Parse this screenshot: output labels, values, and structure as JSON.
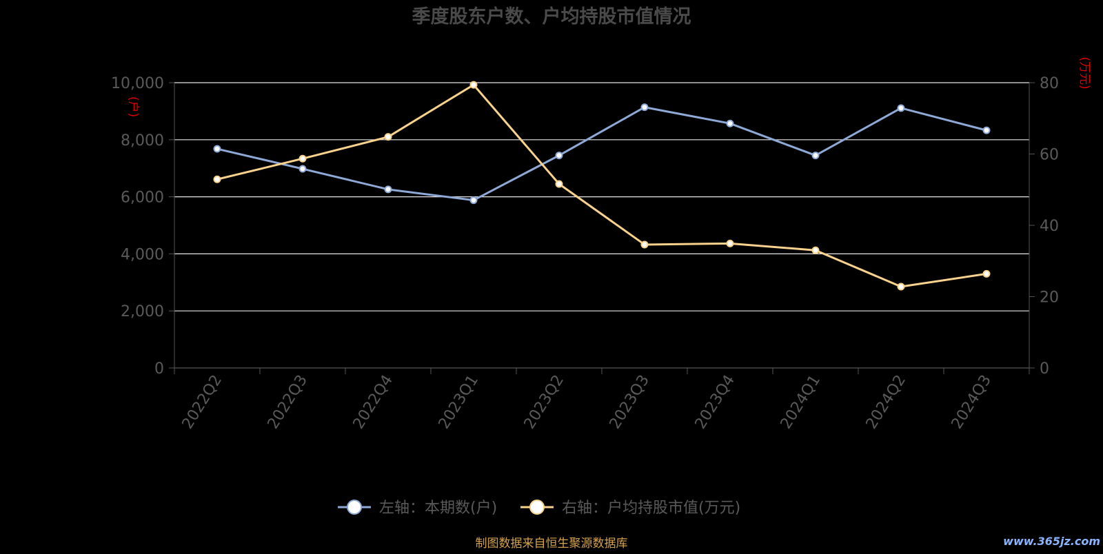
{
  "chart_data": {
    "type": "line",
    "title": "季度股东户数、户均持股市值情况",
    "categories": [
      "2022Q2",
      "2022Q3",
      "2022Q4",
      "2023Q1",
      "2023Q2",
      "2023Q3",
      "2023Q4",
      "2024Q1",
      "2024Q2",
      "2024Q3"
    ],
    "y_left": {
      "unit": "(户)",
      "min": 0,
      "max": 10000,
      "ticks": [
        0,
        2000,
        4000,
        6000,
        8000,
        10000
      ],
      "tick_labels": [
        "0",
        "2,000",
        "4,000",
        "6,000",
        "8,000",
        "10,000"
      ]
    },
    "y_right": {
      "unit": "(万元)",
      "min": 0,
      "max": 80,
      "ticks": [
        0,
        20,
        40,
        60,
        80
      ],
      "tick_labels": [
        "0",
        "20",
        "40",
        "60",
        "80"
      ]
    },
    "series": [
      {
        "name": "左轴：本期数(户)",
        "axis": "left",
        "color": "#8fa9d6",
        "values": [
          7680,
          6980,
          6260,
          5880,
          7450,
          9140,
          8570,
          7450,
          9110,
          8330
        ]
      },
      {
        "name": "右轴：户均持股市值(万元)",
        "axis": "right",
        "color": "#f9d38e",
        "values": [
          52.9,
          58.7,
          64.8,
          79.4,
          51.6,
          34.6,
          34.9,
          33.0,
          22.8,
          26.4
        ]
      }
    ],
    "grid": true,
    "legend_position": "bottom-center",
    "colors": {
      "background": "#000000",
      "title": "#4a4a4a",
      "axis_text": "#5a5a5a",
      "grid": "#e8e8e8",
      "unit": "#e00000",
      "footer": "#d4a24a"
    }
  },
  "footer": {
    "source": "制图数据来自恒生聚源数据库",
    "watermark": "www.365jz.com"
  }
}
